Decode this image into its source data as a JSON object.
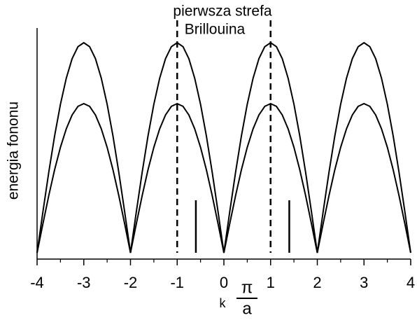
{
  "chart_data": {
    "type": "line",
    "annotation_lines": [
      "pierwsza strefa",
      "Brillouina"
    ],
    "ylabel": "energia fononu",
    "xlabel": "k",
    "xunit_numerator": "π",
    "xunit_denominator": "a",
    "x": [
      -4,
      -3.875,
      -3.75,
      -3.625,
      -3.5,
      -3.375,
      -3.25,
      -3.125,
      -3,
      -2.875,
      -2.75,
      -2.625,
      -2.5,
      -2.375,
      -2.25,
      -2.125,
      -2,
      -1.875,
      -1.75,
      -1.625,
      -1.5,
      -1.375,
      -1.25,
      -1.125,
      -1,
      -0.875,
      -0.75,
      -0.625,
      -0.5,
      -0.375,
      -0.25,
      -0.125,
      0,
      0.125,
      0.25,
      0.375,
      0.5,
      0.625,
      0.75,
      0.875,
      1,
      1.125,
      1.25,
      1.375,
      1.5,
      1.625,
      1.75,
      1.875,
      2,
      2.125,
      2.25,
      2.375,
      2.5,
      2.625,
      2.75,
      2.875,
      3,
      3.125,
      3.25,
      3.375,
      3.5,
      3.625,
      3.75,
      3.875,
      4
    ],
    "series": [
      {
        "color": "#000000",
        "values": [
          0,
          0.195,
          0.383,
          0.556,
          0.707,
          0.831,
          0.924,
          0.981,
          1,
          0.981,
          0.924,
          0.831,
          0.707,
          0.556,
          0.383,
          0.195,
          0,
          0.195,
          0.383,
          0.556,
          0.707,
          0.831,
          0.924,
          0.981,
          1,
          0.981,
          0.924,
          0.831,
          0.707,
          0.556,
          0.383,
          0.195,
          0,
          0.195,
          0.383,
          0.556,
          0.707,
          0.831,
          0.924,
          0.981,
          1,
          0.981,
          0.924,
          0.831,
          0.707,
          0.556,
          0.383,
          0.195,
          0,
          0.195,
          0.383,
          0.556,
          0.707,
          0.831,
          0.924,
          0.981,
          1,
          0.981,
          0.924,
          0.831,
          0.707,
          0.556,
          0.383,
          0.195,
          0
        ]
      },
      {
        "color": "#000000",
        "values": [
          0,
          0.138,
          0.272,
          0.395,
          0.502,
          0.59,
          0.656,
          0.697,
          0.71,
          0.697,
          0.656,
          0.59,
          0.502,
          0.395,
          0.272,
          0.138,
          0,
          0.138,
          0.272,
          0.395,
          0.502,
          0.59,
          0.656,
          0.697,
          0.71,
          0.697,
          0.656,
          0.59,
          0.502,
          0.395,
          0.272,
          0.138,
          0,
          0.138,
          0.272,
          0.395,
          0.502,
          0.59,
          0.656,
          0.697,
          0.71,
          0.697,
          0.656,
          0.59,
          0.502,
          0.395,
          0.272,
          0.138,
          0,
          0.138,
          0.272,
          0.395,
          0.502,
          0.59,
          0.656,
          0.697,
          0.71,
          0.697,
          0.656,
          0.59,
          0.502,
          0.395,
          0.272,
          0.138,
          0
        ]
      }
    ],
    "zone_boundaries_x": [
      -1,
      1
    ],
    "markers": [
      {
        "x": -0.6,
        "height": 0.25
      },
      {
        "x": 1.4,
        "height": 0.25
      }
    ],
    "xlim": [
      -4,
      4
    ],
    "ylim": [
      -0.03,
      1.07
    ],
    "xticks": [
      -4,
      -3,
      -2,
      -1,
      0,
      1,
      2,
      3,
      4
    ],
    "xminorticks": [
      -3.5,
      -2.5,
      -1.5,
      -0.5,
      0.5,
      1.5,
      2.5,
      3.5
    ]
  }
}
